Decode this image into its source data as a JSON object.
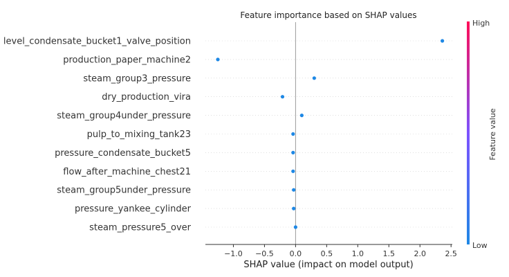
{
  "chart_data": {
    "type": "scatter",
    "title": "Feature importance based on SHAP values",
    "xlabel": "SHAP value (impact on model output)",
    "xlim": [
      -1.45,
      2.52
    ],
    "xticks": [
      -1.0,
      -0.5,
      0.0,
      0.5,
      1.0,
      1.5,
      2.0,
      2.5
    ],
    "xtick_labels": [
      "−1.0",
      "−0.5",
      "0.0",
      "0.5",
      "1.0",
      "1.5",
      "2.0",
      "2.5"
    ],
    "grid": "horizontal dotted rows",
    "zero_line": true,
    "features": [
      "level_condensate_bucket1_valve_position",
      "production_paper_machine2",
      "steam_group3_pressure",
      "dry_production_vira",
      "steam_group4under_pressure",
      "pulp_to_mixing_tank23",
      "pressure_condensate_bucket5",
      "flow_after_machine_chest21",
      "steam_group5under_pressure",
      "pressure_yankee_cylinder",
      "steam_pressure5_over"
    ],
    "shap_values": [
      2.36,
      -1.25,
      0.3,
      -0.21,
      0.1,
      -0.04,
      -0.04,
      -0.04,
      -0.03,
      -0.03,
      0.0
    ],
    "point_color": "#1e88e5",
    "colorbar": {
      "label": "Feature value",
      "high_label": "High",
      "low_label": "Low",
      "low_color": "#1e88e5",
      "high_color": "#ff0d57"
    }
  }
}
